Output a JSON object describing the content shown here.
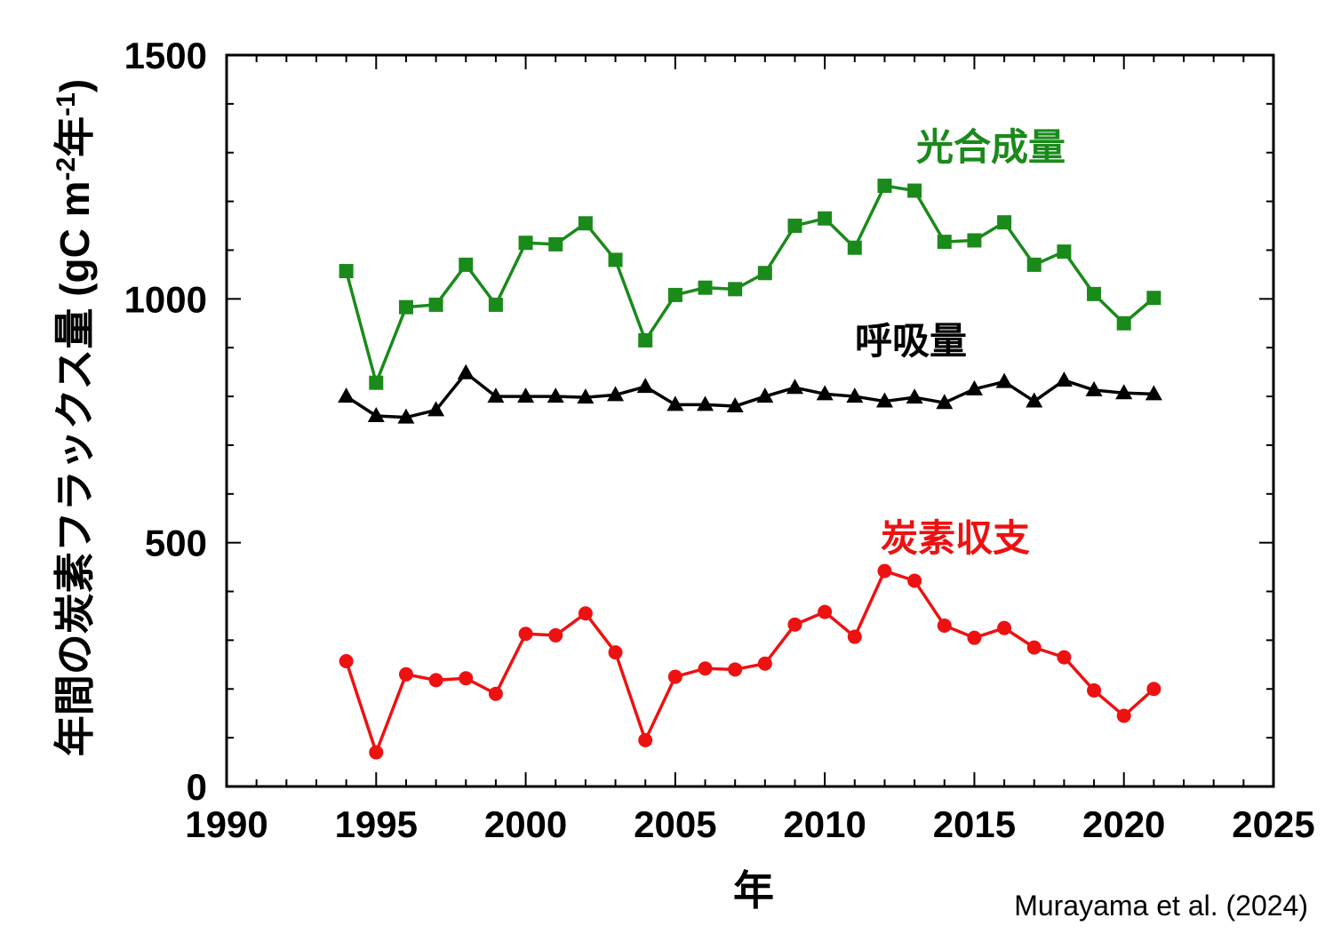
{
  "chart_data": {
    "type": "line",
    "xlabel": "年",
    "ylabel": "年間の炭素フラックス量 (gC m-2年-1)",
    "ylabel_parts": {
      "main": "年間の炭素フラックス量 (gC m",
      "sup1": "-2",
      "mid": "年",
      "sup2": "-1",
      "end": ")"
    },
    "xlim": [
      1990,
      2025
    ],
    "ylim": [
      0,
      1500
    ],
    "xticks": [
      1990,
      1995,
      2000,
      2005,
      2010,
      2015,
      2020,
      2025
    ],
    "yticks": [
      0,
      500,
      1000,
      1500
    ],
    "grid": false,
    "x": [
      1994,
      1995,
      1996,
      1997,
      1998,
      1999,
      2000,
      2001,
      2002,
      2003,
      2004,
      2005,
      2006,
      2007,
      2008,
      2009,
      2010,
      2011,
      2012,
      2013,
      2014,
      2015,
      2016,
      2017,
      2018,
      2019,
      2020,
      2021
    ],
    "series": [
      {
        "name": "光合成量",
        "color": "#1a8a1a",
        "marker": "square",
        "values": [
          1057,
          828,
          983,
          988,
          1070,
          988,
          1115,
          1112,
          1155,
          1080,
          915,
          1008,
          1023,
          1020,
          1053,
          1150,
          1165,
          1105,
          1232,
          1222,
          1117,
          1120,
          1157,
          1070,
          1097,
          1010,
          950,
          1002
        ]
      },
      {
        "name": "呼吸量",
        "color": "#000000",
        "marker": "triangle",
        "values": [
          800,
          760,
          757,
          772,
          848,
          800,
          800,
          800,
          798,
          803,
          820,
          783,
          783,
          780,
          800,
          818,
          805,
          800,
          790,
          798,
          787,
          815,
          830,
          790,
          833,
          813,
          807,
          805
        ]
      },
      {
        "name": "炭素収支",
        "color": "#ee1111",
        "marker": "circle",
        "values": [
          257,
          70,
          230,
          218,
          222,
          190,
          313,
          310,
          355,
          275,
          95,
          225,
          242,
          240,
          252,
          332,
          358,
          307,
          442,
          422,
          330,
          305,
          325,
          285,
          265,
          197,
          145,
          200
        ]
      }
    ]
  },
  "credit": "Murayama et al. (2024)"
}
